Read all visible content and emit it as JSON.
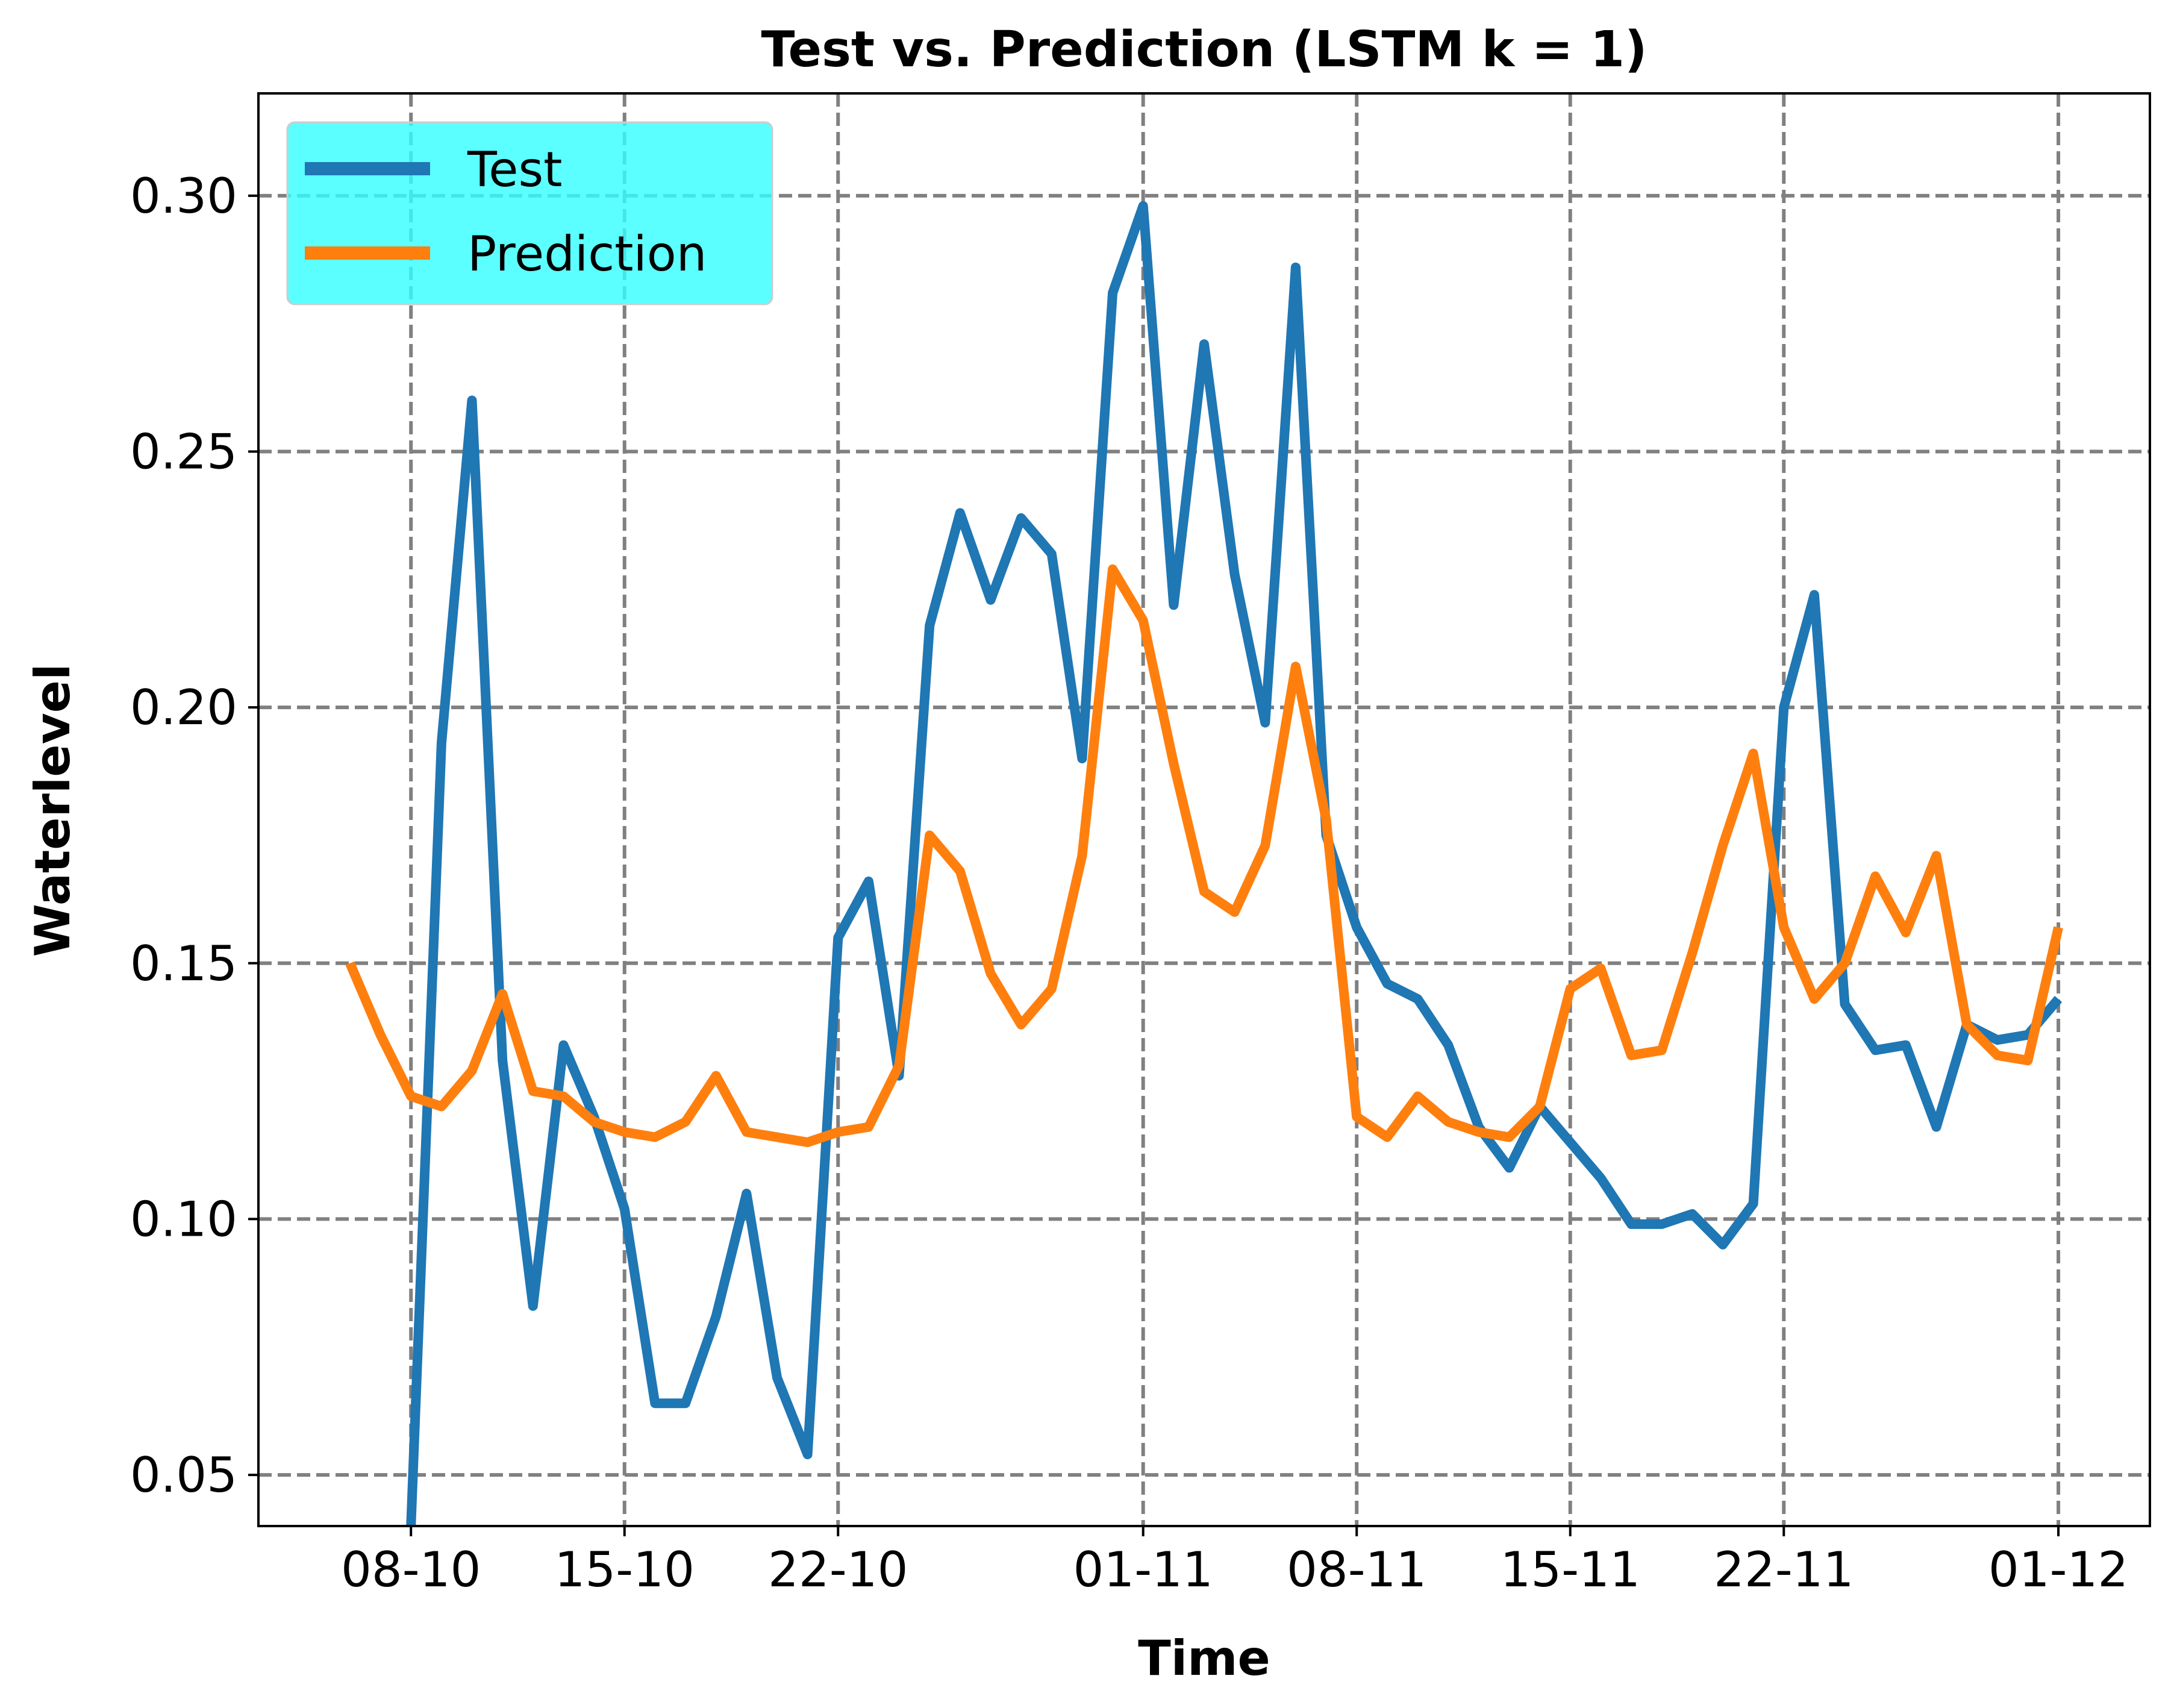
{
  "chart_data": {
    "type": "line",
    "title": "Test vs. Prediction (LSTM k = 1)",
    "xlabel": "Time",
    "ylabel": "Waterlevel",
    "ylim": [
      0.04,
      0.32
    ],
    "xlim": [
      "2021-10-03",
      "2021-12-04"
    ],
    "x_ticks": [
      {
        "date": "2021-10-08",
        "label": "08-10"
      },
      {
        "date": "2021-10-15",
        "label": "15-10"
      },
      {
        "date": "2021-10-22",
        "label": "22-10"
      },
      {
        "date": "2021-11-01",
        "label": "01-11"
      },
      {
        "date": "2021-11-08",
        "label": "08-11"
      },
      {
        "date": "2021-11-15",
        "label": "15-11"
      },
      {
        "date": "2021-11-22",
        "label": "22-11"
      },
      {
        "date": "2021-12-01",
        "label": "01-12"
      }
    ],
    "y_ticks": [
      {
        "value": 0.05,
        "label": "0.05"
      },
      {
        "value": 0.1,
        "label": "0.10"
      },
      {
        "value": 0.15,
        "label": "0.15"
      },
      {
        "value": 0.2,
        "label": "0.20"
      },
      {
        "value": 0.25,
        "label": "0.25"
      },
      {
        "value": 0.3,
        "label": "0.30"
      }
    ],
    "grid": true,
    "legend": {
      "placement": "upper-left",
      "background": "#33ffff"
    },
    "series": [
      {
        "name": "Test",
        "color": "#1f77b4",
        "points": [
          [
            "2021-10-08",
            0.04
          ],
          [
            "2021-10-09",
            0.193
          ],
          [
            "2021-10-10",
            0.26
          ],
          [
            "2021-10-11",
            0.131
          ],
          [
            "2021-10-12",
            0.083
          ],
          [
            "2021-10-13",
            0.134
          ],
          [
            "2021-10-14",
            0.12
          ],
          [
            "2021-10-15",
            0.102
          ],
          [
            "2021-10-16",
            0.064
          ],
          [
            "2021-10-17",
            0.064
          ],
          [
            "2021-10-18",
            0.081
          ],
          [
            "2021-10-19",
            0.105
          ],
          [
            "2021-10-20",
            0.069
          ],
          [
            "2021-10-21",
            0.054
          ],
          [
            "2021-10-22",
            0.155
          ],
          [
            "2021-10-23",
            0.166
          ],
          [
            "2021-10-24",
            0.128
          ],
          [
            "2021-10-25",
            0.216
          ],
          [
            "2021-10-26",
            0.238
          ],
          [
            "2021-10-27",
            0.221
          ],
          [
            "2021-10-28",
            0.237
          ],
          [
            "2021-10-29",
            0.23
          ],
          [
            "2021-10-30",
            0.19
          ],
          [
            "2021-10-31",
            0.281
          ],
          [
            "2021-11-01",
            0.298
          ],
          [
            "2021-11-02",
            0.22
          ],
          [
            "2021-11-03",
            0.271
          ],
          [
            "2021-11-04",
            0.226
          ],
          [
            "2021-11-05",
            0.197
          ],
          [
            "2021-11-06",
            0.286
          ],
          [
            "2021-11-07",
            0.175
          ],
          [
            "2021-11-08",
            0.157
          ],
          [
            "2021-11-09",
            0.146
          ],
          [
            "2021-11-10",
            0.143
          ],
          [
            "2021-11-11",
            0.134
          ],
          [
            "2021-11-12",
            0.118
          ],
          [
            "2021-11-13",
            0.11
          ],
          [
            "2021-11-14",
            0.122
          ],
          [
            "2021-11-15",
            0.115
          ],
          [
            "2021-11-16",
            0.108
          ],
          [
            "2021-11-17",
            0.099
          ],
          [
            "2021-11-18",
            0.099
          ],
          [
            "2021-11-19",
            0.101
          ],
          [
            "2021-11-20",
            0.095
          ],
          [
            "2021-11-21",
            0.103
          ],
          [
            "2021-11-22",
            0.2
          ],
          [
            "2021-11-23",
            0.222
          ],
          [
            "2021-11-24",
            0.142
          ],
          [
            "2021-11-25",
            0.133
          ],
          [
            "2021-11-26",
            0.134
          ],
          [
            "2021-11-27",
            0.118
          ],
          [
            "2021-11-28",
            0.138
          ],
          [
            "2021-11-29",
            0.135
          ],
          [
            "2021-11-30",
            0.136
          ],
          [
            "2021-12-01",
            0.143
          ]
        ]
      },
      {
        "name": "Prediction",
        "color": "#ff7f0e",
        "points": [
          [
            "2021-10-06",
            0.15
          ],
          [
            "2021-10-07",
            0.136
          ],
          [
            "2021-10-08",
            0.124
          ],
          [
            "2021-10-09",
            0.122
          ],
          [
            "2021-10-10",
            0.129
          ],
          [
            "2021-10-11",
            0.144
          ],
          [
            "2021-10-12",
            0.125
          ],
          [
            "2021-10-13",
            0.124
          ],
          [
            "2021-10-14",
            0.119
          ],
          [
            "2021-10-15",
            0.117
          ],
          [
            "2021-10-16",
            0.116
          ],
          [
            "2021-10-17",
            0.119
          ],
          [
            "2021-10-18",
            0.128
          ],
          [
            "2021-10-19",
            0.117
          ],
          [
            "2021-10-20",
            0.116
          ],
          [
            "2021-10-21",
            0.115
          ],
          [
            "2021-10-22",
            0.117
          ],
          [
            "2021-10-23",
            0.118
          ],
          [
            "2021-10-24",
            0.13
          ],
          [
            "2021-10-25",
            0.175
          ],
          [
            "2021-10-26",
            0.168
          ],
          [
            "2021-10-27",
            0.148
          ],
          [
            "2021-10-28",
            0.138
          ],
          [
            "2021-10-29",
            0.145
          ],
          [
            "2021-10-30",
            0.171
          ],
          [
            "2021-10-31",
            0.227
          ],
          [
            "2021-11-01",
            0.217
          ],
          [
            "2021-11-02",
            0.189
          ],
          [
            "2021-11-03",
            0.164
          ],
          [
            "2021-11-04",
            0.16
          ],
          [
            "2021-11-05",
            0.173
          ],
          [
            "2021-11-06",
            0.208
          ],
          [
            "2021-11-07",
            0.178
          ],
          [
            "2021-11-08",
            0.12
          ],
          [
            "2021-11-09",
            0.116
          ],
          [
            "2021-11-10",
            0.124
          ],
          [
            "2021-11-11",
            0.119
          ],
          [
            "2021-11-12",
            0.117
          ],
          [
            "2021-11-13",
            0.116
          ],
          [
            "2021-11-14",
            0.122
          ],
          [
            "2021-11-15",
            0.145
          ],
          [
            "2021-11-16",
            0.149
          ],
          [
            "2021-11-17",
            0.132
          ],
          [
            "2021-11-18",
            0.133
          ],
          [
            "2021-11-19",
            0.152
          ],
          [
            "2021-11-20",
            0.173
          ],
          [
            "2021-11-21",
            0.191
          ],
          [
            "2021-11-22",
            0.157
          ],
          [
            "2021-11-23",
            0.143
          ],
          [
            "2021-11-24",
            0.15
          ],
          [
            "2021-11-25",
            0.167
          ],
          [
            "2021-11-26",
            0.156
          ],
          [
            "2021-11-27",
            0.171
          ],
          [
            "2021-11-28",
            0.138
          ],
          [
            "2021-11-29",
            0.132
          ],
          [
            "2021-11-30",
            0.131
          ],
          [
            "2021-12-01",
            0.157
          ]
        ]
      }
    ]
  }
}
